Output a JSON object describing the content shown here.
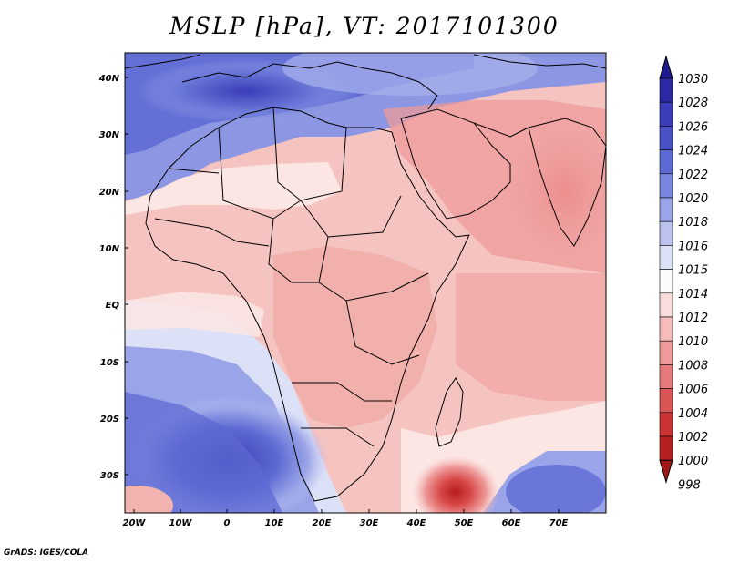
{
  "title": "MSLP [hPa], VT: 2017101300",
  "credit": "GrADS: IGES/COLA",
  "lat_labels": [
    "40N",
    "30N",
    "20N",
    "10N",
    "EQ",
    "10S",
    "20S",
    "30S"
  ],
  "lon_labels": [
    "20W",
    "10W",
    "0",
    "10E",
    "20E",
    "30E",
    "40E",
    "50E",
    "60E",
    "70E"
  ],
  "colorbar": {
    "labels": [
      "1030",
      "1028",
      "1026",
      "1024",
      "1022",
      "1020",
      "1018",
      "1016",
      "1015",
      "1014",
      "1012",
      "1010",
      "1008",
      "1006",
      "1004",
      "1002",
      "1000",
      "998"
    ],
    "colors": [
      "#1f1a8c",
      "#2b2aa4",
      "#3a3cb8",
      "#4a52c6",
      "#5e6ad3",
      "#7a86de",
      "#9aa4e8",
      "#bcc3f1",
      "#dde1f8",
      "#fbfbfb",
      "#fbdcdc",
      "#f6bcbc",
      "#ee9a9a",
      "#e57a7a",
      "#da5555",
      "#cc3333",
      "#b72020",
      "#a01818"
    ]
  },
  "regions": {
    "land": "#f2b4b0",
    "ocean_pink": "#f7c9c6",
    "highs": "#4a52c6",
    "low_center": "#cc3333"
  }
}
